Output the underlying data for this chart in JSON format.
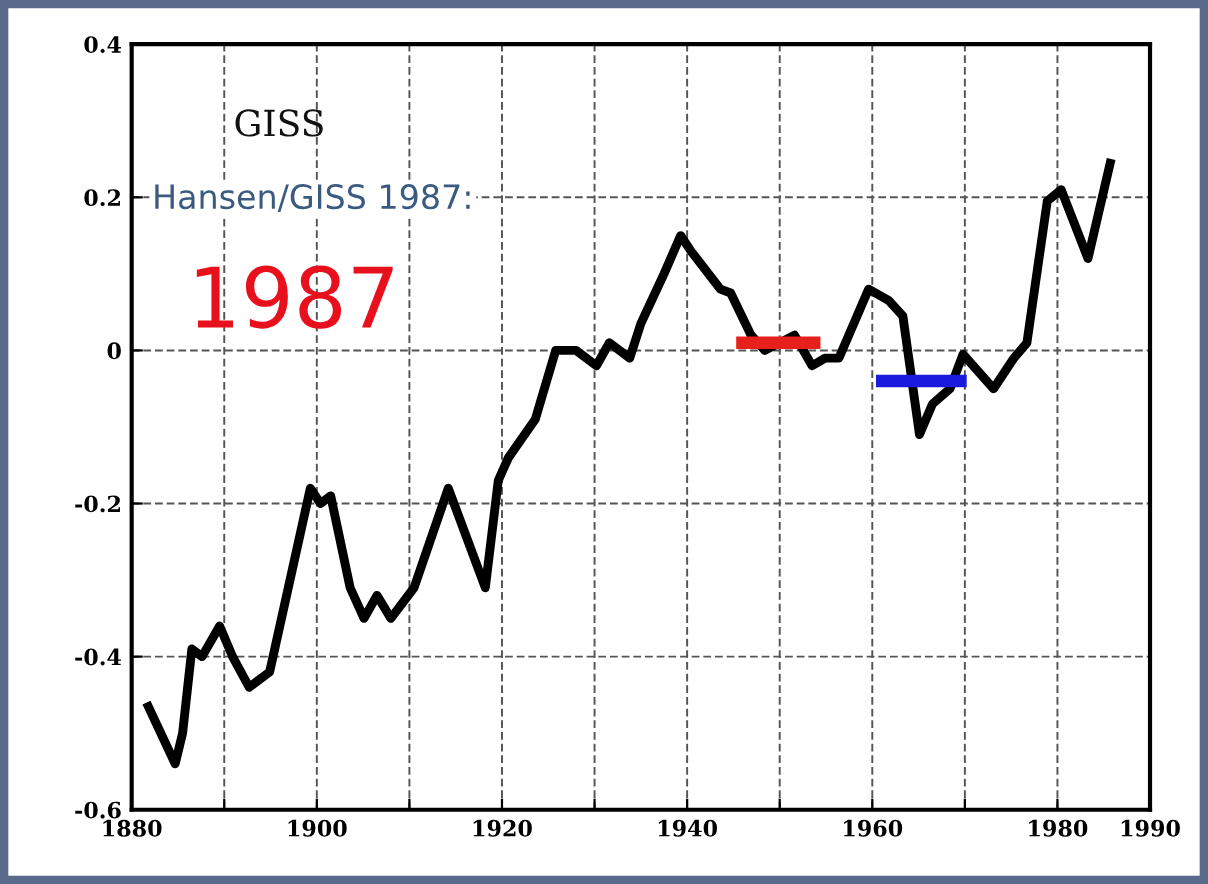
{
  "chart_data": {
    "type": "line",
    "title": "GISS",
    "subtitle": "Hansen/GISS 1987:",
    "annotations": [
      "1987"
    ],
    "series": [
      {
        "color": "#000000",
        "x": [
          1881.6,
          1884.7,
          1885.5,
          1886.5,
          1887.6,
          1889.5,
          1890.9,
          1892.7,
          1894.9,
          1899.3,
          1900.4,
          1901.5,
          1903.6,
          1905.1,
          1906.5,
          1908,
          1910.5,
          1914.2,
          1918.2,
          1919.6,
          1920.7,
          1923.6,
          1925.8,
          1928,
          1930.2,
          1931.6,
          1933.8,
          1935,
          1937.5,
          1939.3,
          1940.4,
          1943.6,
          1944.7,
          1946.9,
          1948.4,
          1951.6,
          1953.5,
          1954.9,
          1956.4,
          1959.6,
          1961.8,
          1963.3,
          1965.1,
          1966.5,
          1968.4,
          1969.8,
          1973.1,
          1975.3,
          1976.7,
          1978.9,
          1980.4,
          1983.3,
          1985.8
        ],
        "values": [
          -0.46,
          -0.54,
          -0.5,
          -0.39,
          -0.4,
          -0.36,
          -0.4,
          -0.44,
          -0.42,
          -0.18,
          -0.2,
          -0.19,
          -0.31,
          -0.35,
          -0.32,
          -0.35,
          -0.31,
          -0.18,
          -0.31,
          -0.17,
          -0.14,
          -0.09,
          0.0,
          0.0,
          -0.02,
          0.01,
          -0.01,
          0.035,
          0.1,
          0.15,
          0.13,
          0.08,
          0.075,
          0.02,
          0.0,
          0.02,
          -0.02,
          -0.01,
          -0.01,
          0.08,
          0.065,
          0.045,
          -0.11,
          -0.07,
          -0.05,
          -0.005,
          -0.05,
          -0.01,
          0.01,
          0.195,
          0.21,
          0.12,
          0.25
        ]
      },
      {
        "color": "#e8201c",
        "x": [
          1945.3,
          1954.4
        ],
        "values": [
          0.01,
          0.01
        ]
      },
      {
        "color": "#1a1adc",
        "x": [
          1960.4,
          1970.2
        ],
        "values": [
          -0.04,
          -0.04
        ]
      }
    ],
    "xlim": [
      1880,
      1990
    ],
    "ylim": [
      -0.6,
      0.4
    ],
    "xticks": [
      1880,
      {
        "value": 1890,
        "label": null
      },
      1900,
      {
        "value": 1910,
        "label": null
      },
      1920,
      {
        "value": 1930,
        "label": null
      },
      1940,
      {
        "value": 1950,
        "label": null
      },
      1960,
      {
        "value": 1970,
        "label": null
      },
      1980,
      1990
    ],
    "yticks": [
      -0.6,
      -0.4,
      -0.2,
      0,
      0.2,
      0.4
    ],
    "grid": true,
    "line_style": "solid",
    "marker": "none"
  }
}
